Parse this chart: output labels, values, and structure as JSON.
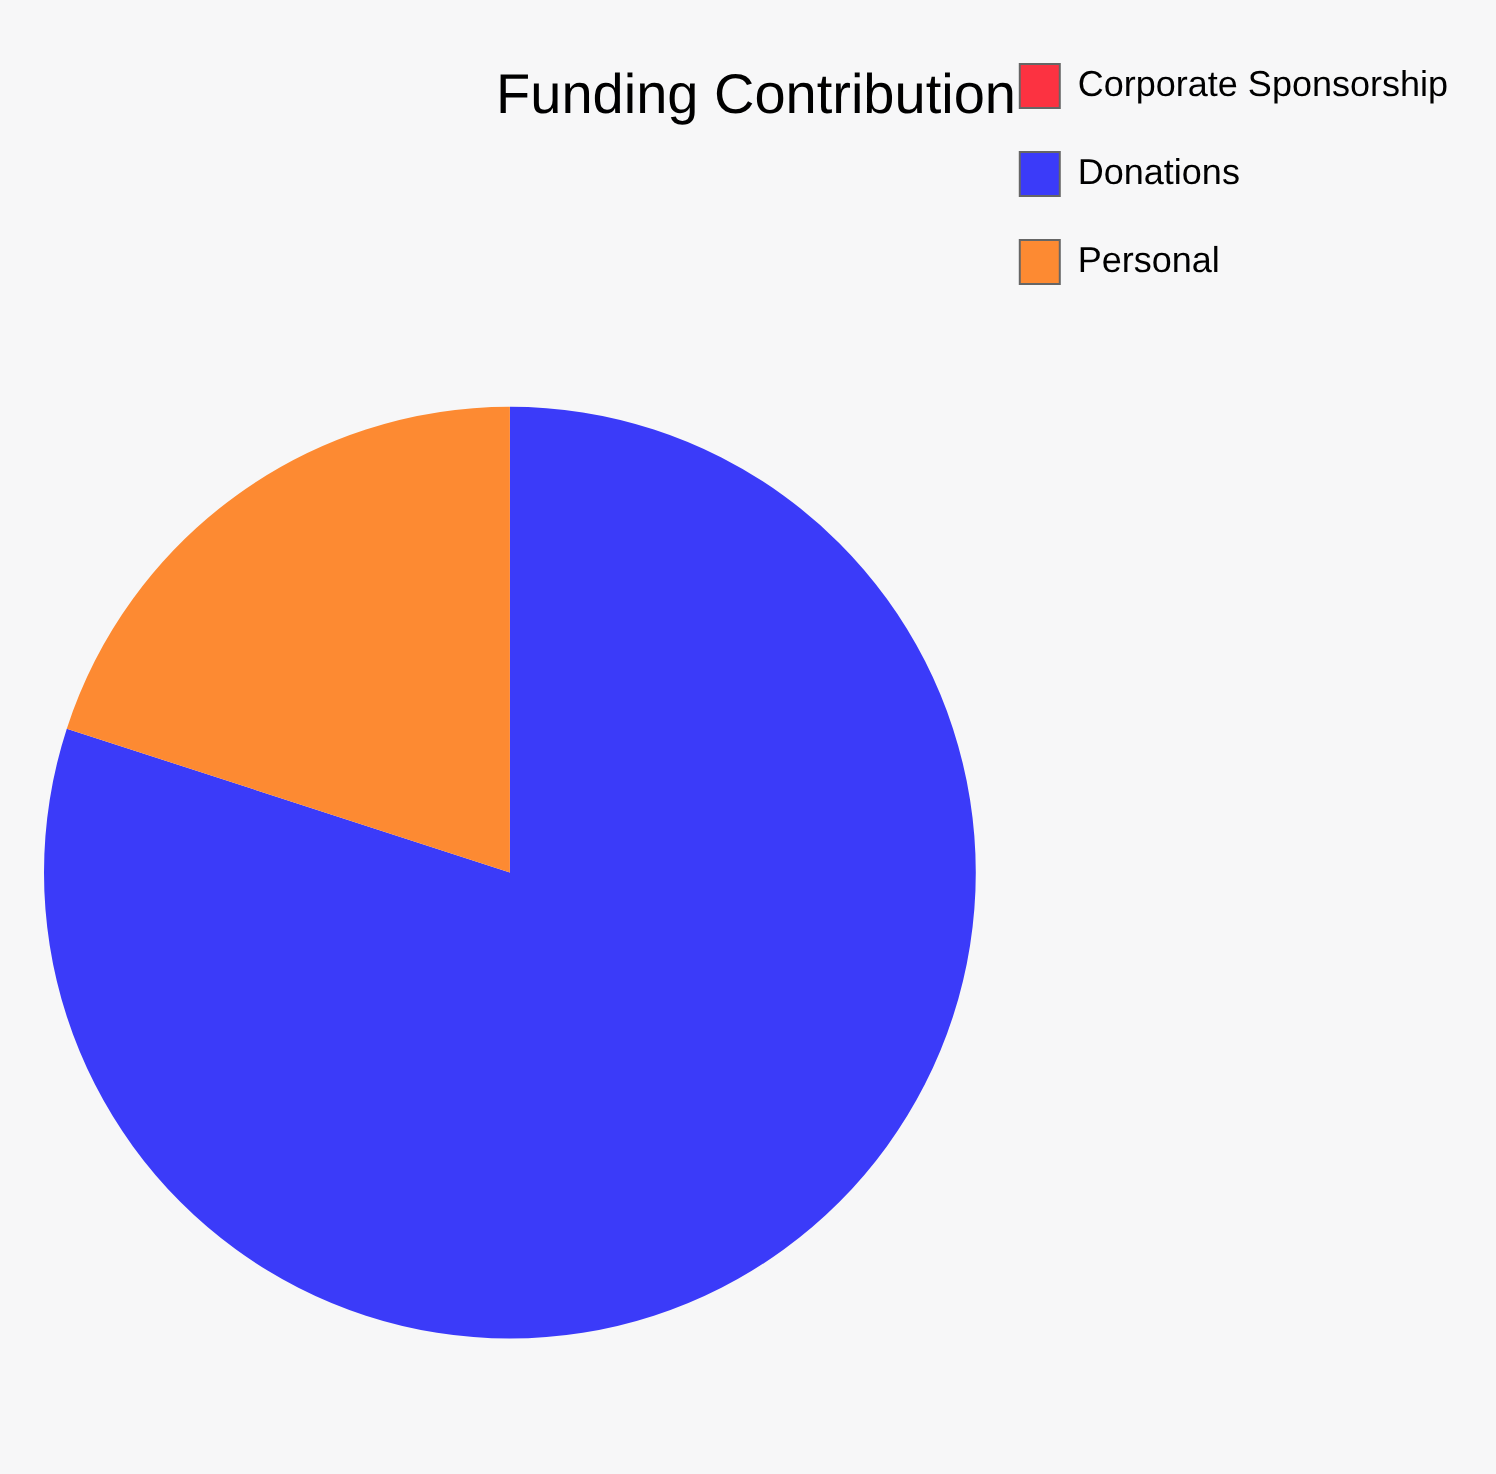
{
  "chart_data": {
    "type": "pie",
    "title": "Funding Contribution",
    "categories": [
      "Corporate Sponsorship",
      "Donations",
      "Personal"
    ],
    "values": [
      0,
      80,
      20
    ],
    "colors": [
      "#fc3241",
      "#3b3bf9",
      "#fd8a32"
    ],
    "legend": "top right"
  }
}
